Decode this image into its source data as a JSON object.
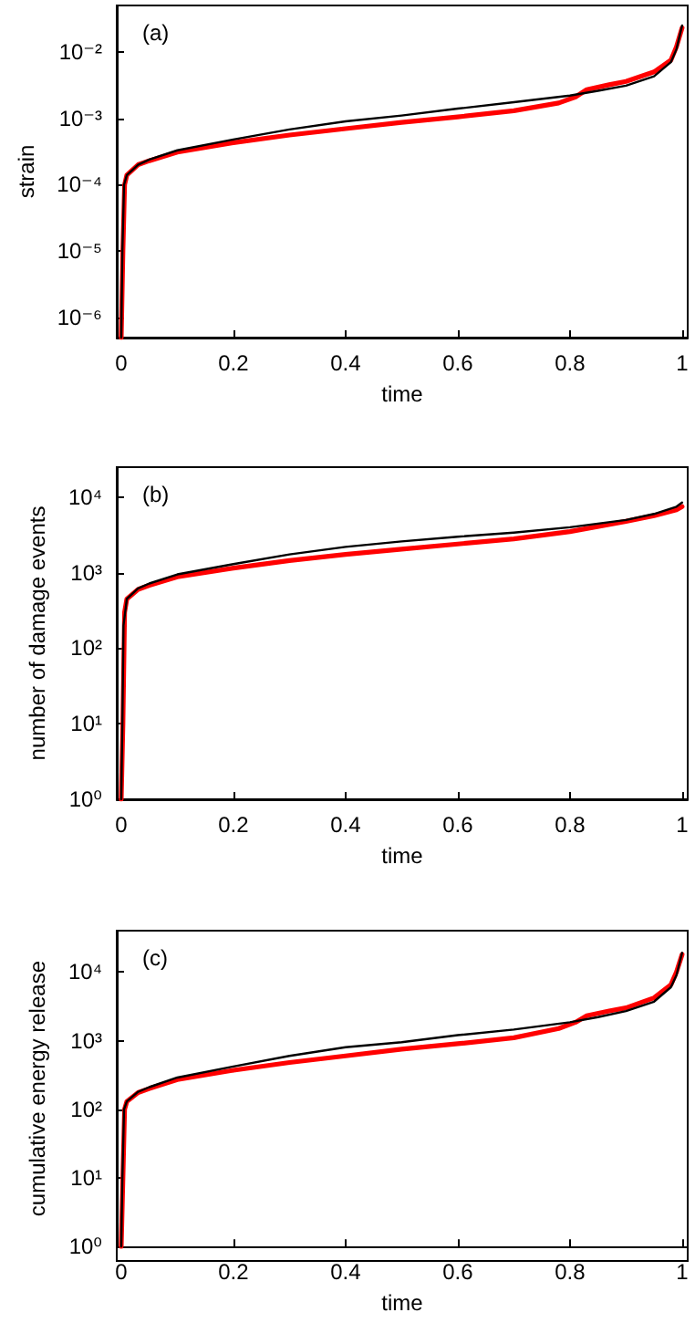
{
  "chart_data": [
    {
      "type": "line",
      "xlabel": "time",
      "ylabel": "strain",
      "annotations": [
        "(a)"
      ],
      "log": true,
      "xlim": [
        -0.008,
        1.01
      ],
      "xticks": [
        0,
        0.2,
        0.4,
        0.6,
        0.8,
        1
      ],
      "ylim": [
        5e-07,
        0.05
      ],
      "yticks": [
        {
          "value": 1e-06,
          "label": "10⁻⁶"
        },
        {
          "value": 1e-05,
          "label": "10⁻⁵"
        },
        {
          "value": 0.0001,
          "label": "10⁻⁴"
        },
        {
          "value": 0.001,
          "label": "10⁻³"
        },
        {
          "value": 0.01,
          "label": "10⁻²"
        }
      ],
      "series": [
        {
          "color": "#000000",
          "x": [
            0,
            0.002,
            0.005,
            0.01,
            0.03,
            0.05,
            0.1,
            0.2,
            0.3,
            0.4,
            0.5,
            0.6,
            0.7,
            0.8,
            0.85,
            0.9,
            0.95,
            0.98,
            0.99,
            1
          ],
          "values": [
            5e-07,
            1e-05,
            0.0001,
            0.00014,
            0.0002,
            0.00024,
            0.00033,
            0.00048,
            0.00068,
            0.0009,
            0.0011,
            0.0014,
            0.00175,
            0.0022,
            0.0026,
            0.0031,
            0.0043,
            0.007,
            0.011,
            0.025
          ]
        },
        {
          "color": "#ff0000",
          "x": [
            0,
            0.003,
            0.006,
            0.01,
            0.03,
            0.05,
            0.1,
            0.2,
            0.3,
            0.4,
            0.5,
            0.6,
            0.7,
            0.78,
            0.81,
            0.83,
            0.87,
            0.9,
            0.95,
            0.98,
            0.99,
            1
          ],
          "values": [
            5e-07,
            1e-05,
            0.0001,
            0.00014,
            0.0002,
            0.00023,
            0.00031,
            0.00043,
            0.00056,
            0.0007,
            0.00087,
            0.00105,
            0.0013,
            0.0017,
            0.0021,
            0.0027,
            0.0032,
            0.0036,
            0.005,
            0.0075,
            0.012,
            0.023
          ]
        }
      ]
    },
    {
      "type": "line",
      "xlabel": "time",
      "ylabel": "number of damage events",
      "annotations": [
        "(b)"
      ],
      "log": true,
      "xlim": [
        -0.008,
        1.01
      ],
      "xticks": [
        0,
        0.2,
        0.4,
        0.6,
        0.8,
        1
      ],
      "ylim": [
        1,
        25000
      ],
      "yticks": [
        {
          "value": 1,
          "label": "10⁰"
        },
        {
          "value": 10,
          "label": "10¹"
        },
        {
          "value": 100,
          "label": "10²"
        },
        {
          "value": 1000,
          "label": "10³"
        },
        {
          "value": 10000,
          "label": "10⁴"
        }
      ],
      "series": [
        {
          "color": "#000000",
          "x": [
            0,
            0.002,
            0.004,
            0.01,
            0.03,
            0.05,
            0.1,
            0.2,
            0.3,
            0.4,
            0.5,
            0.6,
            0.7,
            0.8,
            0.9,
            0.95,
            0.99,
            1
          ],
          "values": [
            1,
            10,
            200,
            450,
            620,
            720,
            950,
            1300,
            1750,
            2200,
            2600,
            3000,
            3400,
            4000,
            5000,
            6000,
            7500,
            8500
          ]
        },
        {
          "color": "#ff0000",
          "x": [
            0,
            0.003,
            0.006,
            0.01,
            0.03,
            0.05,
            0.1,
            0.2,
            0.3,
            0.4,
            0.5,
            0.6,
            0.7,
            0.8,
            0.9,
            0.95,
            0.99,
            1
          ],
          "values": [
            1,
            10,
            300,
            450,
            600,
            680,
            880,
            1150,
            1450,
            1750,
            2050,
            2400,
            2800,
            3500,
            4800,
            5700,
            6800,
            7500
          ]
        }
      ]
    },
    {
      "type": "line",
      "xlabel": "time",
      "ylabel": "cumulative energy release",
      "annotations": [
        "(c)"
      ],
      "log": true,
      "xlim": [
        -0.008,
        1.01
      ],
      "xticks": [
        0,
        0.2,
        0.4,
        0.6,
        0.8,
        1
      ],
      "ylim": [
        1,
        40000
      ],
      "yticks": [
        {
          "value": 1,
          "label": "10⁰"
        },
        {
          "value": 10,
          "label": "10¹"
        },
        {
          "value": 100,
          "label": "10²"
        },
        {
          "value": 1000,
          "label": "10³"
        },
        {
          "value": 10000,
          "label": "10⁴"
        }
      ],
      "series": [
        {
          "color": "#000000",
          "x": [
            0,
            0.002,
            0.005,
            0.01,
            0.03,
            0.05,
            0.1,
            0.2,
            0.3,
            0.4,
            0.5,
            0.6,
            0.7,
            0.8,
            0.85,
            0.9,
            0.95,
            0.98,
            0.99,
            1
          ],
          "values": [
            1,
            10,
            100,
            130,
            180,
            210,
            290,
            420,
            600,
            800,
            950,
            1200,
            1450,
            1850,
            2200,
            2700,
            3700,
            6000,
            9000,
            19000
          ]
        },
        {
          "color": "#ff0000",
          "x": [
            0,
            0.003,
            0.006,
            0.01,
            0.03,
            0.05,
            0.1,
            0.2,
            0.3,
            0.4,
            0.5,
            0.6,
            0.7,
            0.78,
            0.81,
            0.83,
            0.87,
            0.9,
            0.95,
            0.98,
            0.99,
            1
          ],
          "values": [
            1,
            10,
            100,
            130,
            175,
            200,
            270,
            370,
            480,
            600,
            750,
            900,
            1100,
            1500,
            1850,
            2300,
            2700,
            3000,
            4200,
            6500,
            10000,
            18000
          ]
        }
      ]
    }
  ]
}
